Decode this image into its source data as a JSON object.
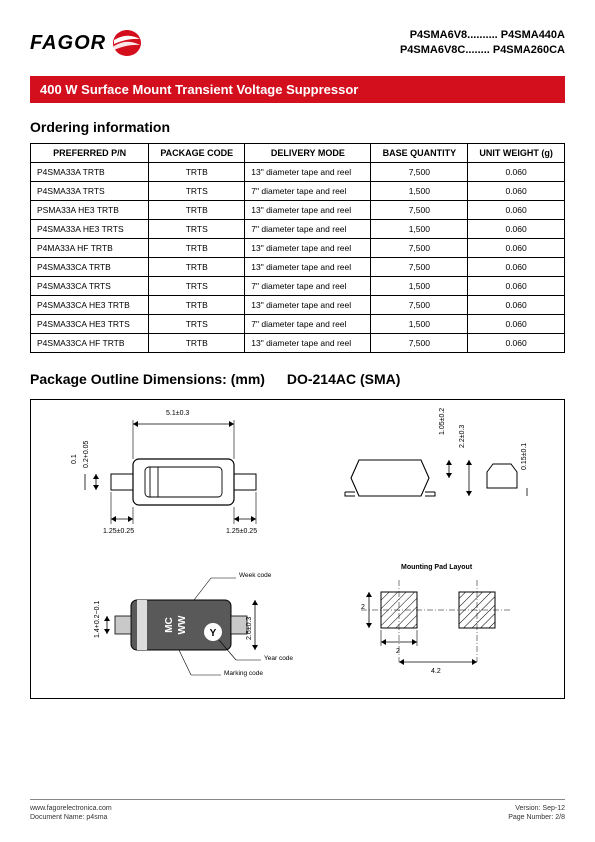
{
  "header": {
    "logo_text": "FAGOR",
    "part_line1": "P4SMA6V8.......... P4SMA440A",
    "part_line2": "P4SMA6V8C........ P4SMA260CA"
  },
  "title_bar": "400 W Surface Mount Transient Voltage Suppressor",
  "ordering": {
    "heading": "Ordering information",
    "columns": [
      "PREFERRED P/N",
      "PACKAGE CODE",
      "DELIVERY MODE",
      "BASE QUANTITY",
      "UNIT WEIGHT (g)"
    ],
    "rows": [
      [
        "P4SMA33A TRTB",
        "TRTB",
        "13\" diameter tape and reel",
        "7,500",
        "0.060"
      ],
      [
        "P4SMA33A TRTS",
        "TRTS",
        "7\" diameter tape and reel",
        "1,500",
        "0.060"
      ],
      [
        "PSMA33A HE3 TRTB",
        "TRTB",
        "13\" diameter tape and reel",
        "7,500",
        "0.060"
      ],
      [
        "P4SMA33A HE3 TRTS",
        "TRTS",
        "7\" diameter tape and reel",
        "1,500",
        "0.060"
      ],
      [
        "P4MA33A HF TRTB",
        "TRTB",
        "13\" diameter tape and reel",
        "7,500",
        "0.060"
      ],
      [
        "P4SMA33CA TRTB",
        "TRTB",
        "13\" diameter tape and reel",
        "7,500",
        "0.060"
      ],
      [
        "P4SMA33CA TRTS",
        "TRTS",
        "7\" diameter tape and reel",
        "1,500",
        "0.060"
      ],
      [
        "P4SMA33CA HE3 TRTB",
        "TRTB",
        "13\" diameter tape and reel",
        "7,500",
        "0.060"
      ],
      [
        "P4SMA33CA HE3 TRTS",
        "TRTS",
        "7\" diameter tape and reel",
        "1,500",
        "0.060"
      ],
      [
        "P4SMA33CA HF TRTB",
        "TRTB",
        "13\" diameter tape and reel",
        "7,500",
        "0.060"
      ]
    ]
  },
  "package_outline": {
    "heading_main": "Package Outline Dimensions:  (mm)",
    "heading_sub": "DO-214AC (SMA)"
  },
  "diagram": {
    "dim_5_1": "5.1±0.3",
    "dim_1_05": "1.05±0.2",
    "dim_2_2": "2.2±0.3",
    "dim_1_25_l": "1.25±0.25",
    "dim_1_25_r": "1.25±0.25",
    "dim_0_1": "0.1",
    "dim_0_2": "0.2+0.05",
    "dim_0_15": "0.15±0.1",
    "dim_1_4": "1.4+0.2−0.1",
    "dim_2_6": "2.6±0.3",
    "marking_mc": "MC",
    "marking_ww": "WW",
    "marking_y": "Y",
    "anno_week": "Week code",
    "anno_year": "Year code",
    "anno_marking": "Marking code",
    "anno_mounting": "Mounting Pad Layout",
    "pad_2a": "2",
    "pad_2b": "2",
    "pad_4_2": "4.2"
  },
  "footer": {
    "url": "www.fagorelectronica.com",
    "doc": "Document Name: p4sma",
    "version": "Version:   Sep-12",
    "page": "Page Number: 2/8"
  },
  "colors": {
    "accent_red": "#d30e1d",
    "text": "#000000",
    "border": "#000000",
    "footer_text": "#333333",
    "grid": "#888888"
  }
}
